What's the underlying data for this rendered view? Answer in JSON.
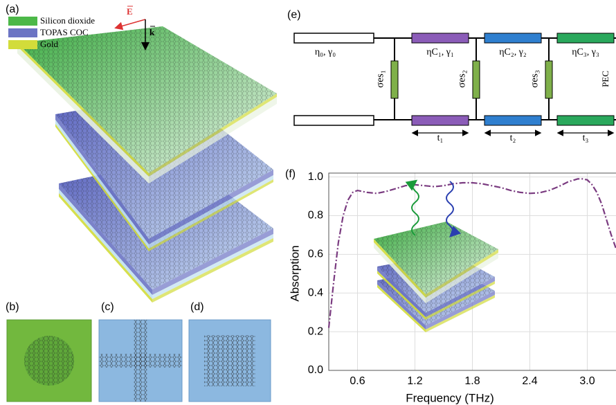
{
  "panel_labels": [
    "(a)",
    "(b)",
    "(c)",
    "(d)",
    "(e)",
    "(f)"
  ],
  "legend": [
    {
      "label": "Silicon dioxide",
      "color": "#4cb848"
    },
    {
      "label": "TOPAS COC",
      "color": "#6c74c4"
    },
    {
      "label": "Gold",
      "color": "#d2dc3a"
    }
  ],
  "vectors": {
    "E": "E",
    "k": "k"
  },
  "circuit": {
    "port": "η₀, γ₀",
    "layers": [
      {
        "label": "ηC₁, γ₁",
        "color": "#8b5cb8"
      },
      {
        "label": "ηC₂, γ₂",
        "color": "#2f7fcf"
      },
      {
        "label": "ηC₃, γ₃",
        "color": "#2aa85c"
      }
    ],
    "shunts": [
      "σes₁",
      "σes₂",
      "σes₃"
    ],
    "thicknesses": [
      "t₁",
      "t₂",
      "t₃"
    ],
    "termination": "PEC"
  },
  "chart_data": {
    "type": "line",
    "xlabel": "Frequency (THz)",
    "ylabel": "Absorption",
    "x": [
      0.3,
      0.35,
      0.4,
      0.45,
      0.5,
      0.55,
      0.6,
      0.7,
      0.8,
      0.9,
      1.0,
      1.1,
      1.2,
      1.3,
      1.4,
      1.5,
      1.6,
      1.7,
      1.8,
      1.9,
      2.0,
      2.1,
      2.2,
      2.3,
      2.4,
      2.5,
      2.6,
      2.7,
      2.8,
      2.9,
      2.95,
      3.0,
      3.05,
      3.1,
      3.15,
      3.2,
      3.25,
      3.3
    ],
    "series": [
      {
        "color": "#7a3b80",
        "values": [
          0.22,
          0.45,
          0.66,
          0.8,
          0.88,
          0.92,
          0.93,
          0.92,
          0.915,
          0.925,
          0.94,
          0.955,
          0.96,
          0.955,
          0.95,
          0.955,
          0.965,
          0.97,
          0.97,
          0.965,
          0.955,
          0.945,
          0.93,
          0.92,
          0.915,
          0.918,
          0.93,
          0.95,
          0.975,
          0.99,
          0.99,
          0.985,
          0.96,
          0.92,
          0.86,
          0.78,
          0.7,
          0.63
        ]
      }
    ],
    "xlim": [
      0.3,
      3.3
    ],
    "ylim": [
      0,
      1.02
    ],
    "xticks": [
      0.6,
      1.2,
      1.8,
      2.4,
      {
        "value": 3,
        "label": "3.0"
      }
    ],
    "yticks": [
      {
        "value": 0,
        "label": "0.0"
      },
      0.2,
      0.4,
      0.6,
      0.8,
      {
        "value": 1,
        "label": "1.0"
      }
    ],
    "grid": true
  }
}
